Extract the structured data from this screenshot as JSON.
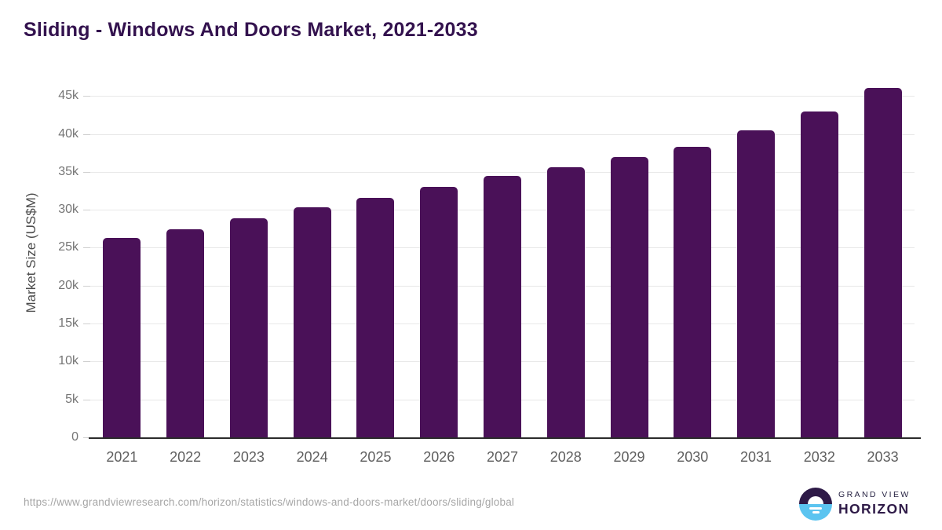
{
  "chart_data": {
    "type": "bar",
    "title": "Sliding - Windows And Doors Market, 2021-2033",
    "ylabel": "Market Size (US$M)",
    "xlabel": "",
    "categories": [
      "2021",
      "2022",
      "2023",
      "2024",
      "2025",
      "2026",
      "2027",
      "2028",
      "2029",
      "2030",
      "2031",
      "2032",
      "2033"
    ],
    "values": [
      26300,
      27400,
      28900,
      30300,
      31600,
      33000,
      34500,
      35600,
      37000,
      38300,
      40500,
      43000,
      46100
    ],
    "ylim": [
      0,
      47300
    ],
    "yticks": [
      {
        "value": 0,
        "label": "0"
      },
      {
        "value": 5000,
        "label": "5k"
      },
      {
        "value": 10000,
        "label": "10k"
      },
      {
        "value": 15000,
        "label": "15k"
      },
      {
        "value": 20000,
        "label": "20k"
      },
      {
        "value": 25000,
        "label": "25k"
      },
      {
        "value": 30000,
        "label": "30k"
      },
      {
        "value": 35000,
        "label": "35k"
      },
      {
        "value": 40000,
        "label": "40k"
      },
      {
        "value": 45000,
        "label": "45k"
      }
    ],
    "grid": "horizontal-solid",
    "legend": "none",
    "bar_color": "#4A1158"
  },
  "footer": {
    "source_url": "https://www.grandviewresearch.com/horizon/statistics/windows-and-doors-market/doors/sliding/global",
    "logo": {
      "line1": "GRAND VIEW",
      "line2": "HORIZON",
      "mark": "sun-over-horizon-icon"
    }
  },
  "colors": {
    "bar": "#4A1158",
    "title": "#33124E",
    "axis": "#2B2B2B",
    "grid": "#E8E8E8",
    "tick": "#757575",
    "tickmark": "#CFCFCF",
    "xlabel": "#5F5F5F",
    "axis_title": "#4D4D4D",
    "url": "#A6A6A6",
    "logo_dark": "#2E1A47",
    "logo_blue": "#5BC4F0"
  }
}
